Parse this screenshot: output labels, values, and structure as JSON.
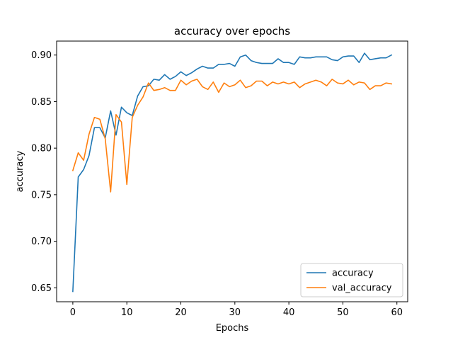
{
  "chart_data": {
    "type": "line",
    "title": "accuracy over epochs",
    "xlabel": "Epochs",
    "ylabel": "accuracy",
    "xlim": [
      -3,
      62
    ],
    "ylim": [
      0.635,
      0.915
    ],
    "xticks": [
      0,
      10,
      20,
      30,
      40,
      50,
      60
    ],
    "yticks": [
      0.65,
      0.7,
      0.75,
      0.8,
      0.85,
      0.9
    ],
    "ytick_labels": [
      "0.65",
      "0.70",
      "0.75",
      "0.80",
      "0.85",
      "0.90"
    ],
    "grid": false,
    "legend_position": "lower-right",
    "series": [
      {
        "name": "accuracy",
        "color": "#1f77b4",
        "x": [
          0,
          1,
          2,
          3,
          4,
          5,
          6,
          7,
          8,
          9,
          10,
          11,
          12,
          13,
          14,
          15,
          16,
          17,
          18,
          19,
          20,
          21,
          22,
          23,
          24,
          25,
          26,
          27,
          28,
          29,
          30,
          31,
          32,
          33,
          34,
          35,
          36,
          37,
          38,
          39,
          40,
          41,
          42,
          43,
          44,
          45,
          46,
          47,
          48,
          49,
          50,
          51,
          52,
          53,
          54,
          55,
          56,
          57,
          58,
          59
        ],
        "values": [
          0.646,
          0.769,
          0.777,
          0.792,
          0.822,
          0.822,
          0.811,
          0.84,
          0.814,
          0.844,
          0.838,
          0.835,
          0.856,
          0.866,
          0.867,
          0.874,
          0.873,
          0.879,
          0.874,
          0.877,
          0.882,
          0.878,
          0.881,
          0.885,
          0.888,
          0.886,
          0.886,
          0.89,
          0.89,
          0.891,
          0.888,
          0.898,
          0.9,
          0.894,
          0.892,
          0.891,
          0.891,
          0.891,
          0.896,
          0.892,
          0.892,
          0.89,
          0.898,
          0.897,
          0.897,
          0.898,
          0.898,
          0.898,
          0.895,
          0.894,
          0.898,
          0.899,
          0.899,
          0.892,
          0.902,
          0.895,
          0.896,
          0.897,
          0.897,
          0.9
        ]
      },
      {
        "name": "val_accuracy",
        "color": "#ff7f0e",
        "x": [
          0,
          1,
          2,
          3,
          4,
          5,
          6,
          7,
          8,
          9,
          10,
          11,
          12,
          13,
          14,
          15,
          16,
          17,
          18,
          19,
          20,
          21,
          22,
          23,
          24,
          25,
          26,
          27,
          28,
          29,
          30,
          31,
          32,
          33,
          34,
          35,
          36,
          37,
          38,
          39,
          40,
          41,
          42,
          43,
          44,
          45,
          46,
          47,
          48,
          49,
          50,
          51,
          52,
          53,
          54,
          55,
          56,
          57,
          58,
          59
        ],
        "values": [
          0.776,
          0.795,
          0.787,
          0.815,
          0.833,
          0.831,
          0.81,
          0.753,
          0.836,
          0.828,
          0.761,
          0.833,
          0.846,
          0.855,
          0.87,
          0.862,
          0.863,
          0.865,
          0.862,
          0.862,
          0.873,
          0.868,
          0.872,
          0.874,
          0.866,
          0.863,
          0.871,
          0.86,
          0.87,
          0.866,
          0.868,
          0.873,
          0.865,
          0.867,
          0.872,
          0.872,
          0.867,
          0.871,
          0.869,
          0.871,
          0.869,
          0.871,
          0.865,
          0.869,
          0.871,
          0.873,
          0.871,
          0.867,
          0.874,
          0.87,
          0.869,
          0.873,
          0.868,
          0.871,
          0.87,
          0.863,
          0.867,
          0.867,
          0.87,
          0.869
        ]
      }
    ]
  }
}
